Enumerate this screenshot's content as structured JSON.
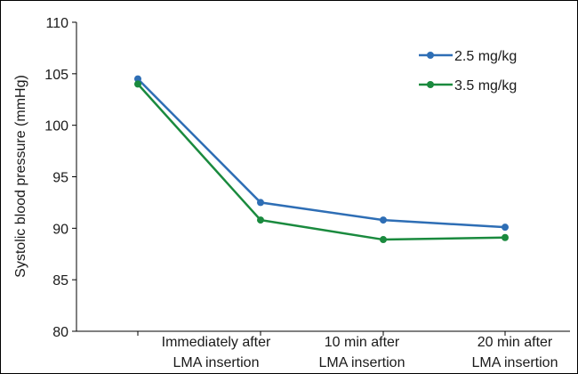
{
  "chart_data": {
    "type": "line",
    "title": "",
    "xlabel": "",
    "ylabel": "Systolic blood pressure (mmHg)",
    "ylim": [
      80,
      110
    ],
    "yticks": [
      80,
      85,
      90,
      95,
      100,
      105,
      110
    ],
    "grid": false,
    "legend_position": "top-right",
    "categories": [
      {
        "line1": "",
        "line2": ""
      },
      {
        "line1": "Immediately after",
        "line2": "LMA insertion"
      },
      {
        "line1": "10 min after",
        "line2": "LMA insertion"
      },
      {
        "line1": "20 min after",
        "line2": "LMA insertion"
      }
    ],
    "series": [
      {
        "name": "2.5 mg/kg",
        "color": "#2e6eb5",
        "values": [
          104.5,
          92.5,
          90.8,
          90.1
        ]
      },
      {
        "name": "3.5 mg/kg",
        "color": "#1a8a3e",
        "values": [
          104.0,
          90.8,
          88.9,
          89.1
        ]
      }
    ]
  }
}
